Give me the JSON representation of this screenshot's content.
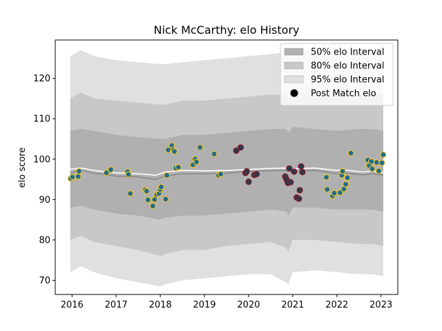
{
  "chart_data": {
    "type": "scatter",
    "title": "Nick McCarthy: elo History",
    "xlabel": "",
    "ylabel": "elo score",
    "xlim": [
      2015.62,
      2023.38
    ],
    "ylim": [
      66.5,
      129.5
    ],
    "xticks": [
      2016,
      2017,
      2018,
      2019,
      2020,
      2021,
      2022,
      2023
    ],
    "yticks": [
      70,
      80,
      90,
      100,
      110,
      120
    ],
    "grid": false,
    "legend_position": "top-right",
    "legend": [
      {
        "label": "50% elo Interval",
        "kind": "band",
        "color": "#b0b0b0"
      },
      {
        "label": "80% elo Interval",
        "kind": "band",
        "color": "#c8c8c8"
      },
      {
        "label": "95% elo Interval",
        "kind": "band",
        "color": "#e0e0e0"
      },
      {
        "label": "Post Match elo",
        "kind": "marker",
        "color": "#000000"
      }
    ],
    "bands": {
      "x": [
        2015.96,
        2016.2,
        2016.5,
        2017.0,
        2017.5,
        2018.0,
        2018.1,
        2018.5,
        2019.0,
        2019.5,
        2020.0,
        2020.5,
        2020.85,
        2020.9,
        2021.0,
        2021.5,
        2022.0,
        2022.5,
        2022.8,
        2023.05
      ],
      "ci95_upper": [
        125.5,
        127.0,
        125.5,
        124.5,
        124.0,
        123.5,
        123.5,
        124.0,
        124.5,
        125.0,
        125.5,
        126.0,
        126.5,
        125.5,
        126.5,
        127.0,
        126.0,
        126.5,
        126.5,
        126.0
      ],
      "ci80_upper": [
        115.0,
        116.5,
        115.0,
        114.5,
        114.0,
        113.5,
        113.5,
        114.5,
        114.5,
        115.0,
        115.5,
        116.0,
        116.0,
        115.0,
        116.5,
        116.5,
        116.0,
        116.0,
        116.5,
        116.0
      ],
      "ci50_upper": [
        107.0,
        107.5,
        107.0,
        106.0,
        105.5,
        105.0,
        105.0,
        106.0,
        106.0,
        106.5,
        107.0,
        107.5,
        107.5,
        106.5,
        108.0,
        107.5,
        107.0,
        107.5,
        107.5,
        107.0
      ],
      "ci50_lower": [
        88.0,
        88.5,
        87.5,
        86.5,
        86.0,
        85.0,
        85.5,
        86.0,
        86.0,
        86.5,
        87.0,
        87.5,
        87.0,
        86.0,
        88.0,
        88.0,
        87.5,
        87.5,
        87.5,
        87.0
      ],
      "ci80_lower": [
        80.0,
        81.0,
        79.5,
        78.5,
        77.5,
        76.0,
        76.5,
        77.5,
        77.5,
        78.5,
        79.0,
        79.5,
        78.0,
        77.0,
        80.0,
        80.0,
        79.5,
        79.0,
        79.0,
        78.5
      ],
      "ci95_lower": [
        72.0,
        73.5,
        72.0,
        70.5,
        69.5,
        68.5,
        69.0,
        70.0,
        70.5,
        71.0,
        71.5,
        71.5,
        69.5,
        69.0,
        72.0,
        72.5,
        72.0,
        71.5,
        71.5,
        71.0
      ]
    },
    "mean_line": {
      "x": [
        2015.96,
        2016.2,
        2016.5,
        2017.0,
        2017.5,
        2017.9,
        2018.1,
        2018.5,
        2019.0,
        2019.5,
        2019.9,
        2020.3,
        2020.8,
        2021.0,
        2021.5,
        2022.0,
        2022.1,
        2022.6,
        2022.8,
        2023.05
      ],
      "values": [
        96.5,
        97.3,
        96.5,
        95.8,
        95.6,
        95.0,
        95.8,
        96.4,
        96.4,
        96.5,
        96.9,
        97.1,
        97.2,
        97.0,
        97.2,
        96.4,
        96.6,
        96.1,
        96.4,
        96.0
      ]
    },
    "median_line": {
      "x": [
        2015.96,
        2016.2,
        2016.5,
        2017.0,
        2017.5,
        2017.9,
        2018.1,
        2018.5,
        2019.0,
        2019.5,
        2019.9,
        2020.3,
        2020.8,
        2021.0,
        2021.5,
        2022.0,
        2022.1,
        2022.6,
        2022.8,
        2023.05
      ],
      "values": [
        97.5,
        97.8,
        97.2,
        96.6,
        96.4,
        96.0,
        96.8,
        97.2,
        97.1,
        97.2,
        97.4,
        97.6,
        97.8,
        97.6,
        97.8,
        97.2,
        97.4,
        96.8,
        97.1,
        96.7
      ]
    },
    "points": [
      {
        "x": 2015.97,
        "y": 95.2,
        "result": "win"
      },
      {
        "x": 2016.01,
        "y": 95.6,
        "result": "win"
      },
      {
        "x": 2016.14,
        "y": 95.7,
        "result": "win"
      },
      {
        "x": 2016.16,
        "y": 97.0,
        "result": "win"
      },
      {
        "x": 2016.78,
        "y": 96.6,
        "result": "win"
      },
      {
        "x": 2016.88,
        "y": 97.4,
        "result": "win"
      },
      {
        "x": 2017.26,
        "y": 96.9,
        "result": "win"
      },
      {
        "x": 2017.28,
        "y": 96.2,
        "result": "win"
      },
      {
        "x": 2017.32,
        "y": 91.5,
        "result": "win"
      },
      {
        "x": 2017.66,
        "y": 92.4,
        "result": "win"
      },
      {
        "x": 2017.69,
        "y": 92.1,
        "result": "win"
      },
      {
        "x": 2017.72,
        "y": 89.9,
        "result": "win"
      },
      {
        "x": 2017.83,
        "y": 88.4,
        "result": "win"
      },
      {
        "x": 2017.87,
        "y": 90.0,
        "result": "win"
      },
      {
        "x": 2017.92,
        "y": 91.2,
        "result": "win"
      },
      {
        "x": 2017.97,
        "y": 91.5,
        "result": "win"
      },
      {
        "x": 2018.0,
        "y": 92.5,
        "result": "win"
      },
      {
        "x": 2018.02,
        "y": 93.1,
        "result": "win"
      },
      {
        "x": 2018.12,
        "y": 90.1,
        "result": "win"
      },
      {
        "x": 2018.15,
        "y": 96.0,
        "result": "win"
      },
      {
        "x": 2018.18,
        "y": 102.3,
        "result": "win"
      },
      {
        "x": 2018.26,
        "y": 103.4,
        "result": "win"
      },
      {
        "x": 2018.29,
        "y": 102.3,
        "result": "win"
      },
      {
        "x": 2018.32,
        "y": 101.9,
        "result": "win"
      },
      {
        "x": 2018.35,
        "y": 97.8,
        "result": "win"
      },
      {
        "x": 2018.41,
        "y": 98.0,
        "result": "win"
      },
      {
        "x": 2018.74,
        "y": 98.6,
        "result": "win"
      },
      {
        "x": 2018.79,
        "y": 100.0,
        "result": "win"
      },
      {
        "x": 2018.82,
        "y": 99.3,
        "result": "win"
      },
      {
        "x": 2018.9,
        "y": 102.9,
        "result": "win"
      },
      {
        "x": 2019.22,
        "y": 101.3,
        "result": "win"
      },
      {
        "x": 2019.32,
        "y": 96.0,
        "result": "win"
      },
      {
        "x": 2019.37,
        "y": 96.3,
        "result": "win"
      },
      {
        "x": 2019.72,
        "y": 102.1,
        "result": "loss"
      },
      {
        "x": 2019.82,
        "y": 102.9,
        "result": "loss"
      },
      {
        "x": 2019.93,
        "y": 96.6,
        "result": "loss"
      },
      {
        "x": 2019.96,
        "y": 97.0,
        "result": "loss"
      },
      {
        "x": 2020.0,
        "y": 94.4,
        "result": "loss"
      },
      {
        "x": 2020.13,
        "y": 96.1,
        "result": "loss"
      },
      {
        "x": 2020.18,
        "y": 96.3,
        "result": "loss"
      },
      {
        "x": 2020.83,
        "y": 95.7,
        "result": "loss"
      },
      {
        "x": 2020.86,
        "y": 95.0,
        "result": "loss"
      },
      {
        "x": 2020.89,
        "y": 94.1,
        "result": "loss"
      },
      {
        "x": 2020.92,
        "y": 97.7,
        "result": "loss"
      },
      {
        "x": 2020.95,
        "y": 94.3,
        "result": "loss"
      },
      {
        "x": 2021.03,
        "y": 96.9,
        "result": "loss"
      },
      {
        "x": 2021.09,
        "y": 90.5,
        "result": "loss"
      },
      {
        "x": 2021.14,
        "y": 90.2,
        "result": "loss"
      },
      {
        "x": 2021.16,
        "y": 92.3,
        "result": "loss"
      },
      {
        "x": 2021.19,
        "y": 98.2,
        "result": "loss"
      },
      {
        "x": 2021.22,
        "y": 96.8,
        "result": "loss"
      },
      {
        "x": 2021.76,
        "y": 95.5,
        "result": "win"
      },
      {
        "x": 2021.78,
        "y": 92.5,
        "result": "win"
      },
      {
        "x": 2021.9,
        "y": 90.9,
        "result": "win"
      },
      {
        "x": 2021.94,
        "y": 91.6,
        "result": "win"
      },
      {
        "x": 2022.07,
        "y": 91.7,
        "result": "win"
      },
      {
        "x": 2022.11,
        "y": 96.0,
        "result": "win"
      },
      {
        "x": 2022.13,
        "y": 97.0,
        "result": "win"
      },
      {
        "x": 2022.16,
        "y": 92.6,
        "result": "win"
      },
      {
        "x": 2022.2,
        "y": 93.8,
        "result": "win"
      },
      {
        "x": 2022.24,
        "y": 95.4,
        "result": "win"
      },
      {
        "x": 2022.32,
        "y": 101.5,
        "result": "win"
      },
      {
        "x": 2022.7,
        "y": 99.8,
        "result": "win"
      },
      {
        "x": 2022.73,
        "y": 98.4,
        "result": "win"
      },
      {
        "x": 2022.78,
        "y": 99.4,
        "result": "win"
      },
      {
        "x": 2022.8,
        "y": 97.6,
        "result": "win"
      },
      {
        "x": 2022.9,
        "y": 99.2,
        "result": "win"
      },
      {
        "x": 2022.95,
        "y": 97.1,
        "result": "win"
      },
      {
        "x": 2023.02,
        "y": 99.1,
        "result": "win"
      },
      {
        "x": 2023.05,
        "y": 101.1,
        "result": "win"
      }
    ],
    "colors": {
      "ci50": "#b0b0b0",
      "ci80": "#c8c8c8",
      "ci95": "#e0e0e0",
      "mean_line": "#8a8a8a",
      "median_line": "#ffffff",
      "point_fill_win": "#1f6e8c",
      "point_edge_win": "#f2c12e",
      "point_fill_loss": "#2b3a4a",
      "point_edge_loss": "#8b1a2b",
      "legend_marker": "#000000"
    }
  }
}
